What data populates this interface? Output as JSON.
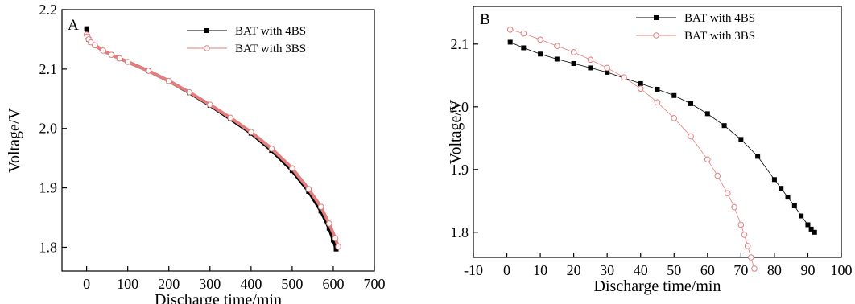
{
  "chart_data": [
    {
      "type": "scatter",
      "panel_label": "A",
      "xlabel": "Discharge time/min",
      "ylabel": "Voltage/V",
      "xlim": [
        -60,
        700
      ],
      "ylim": [
        1.76,
        2.2
      ],
      "xticks": [
        0,
        100,
        200,
        300,
        400,
        500,
        600,
        700
      ],
      "yticks": [
        1.8,
        1.9,
        2.0,
        2.1,
        2.2
      ],
      "legend_position": "top-right",
      "series": [
        {
          "name": "BAT with 4BS",
          "color": "#000000",
          "marker": "square",
          "x": [
            0,
            2,
            5,
            10,
            20,
            40,
            60,
            80,
            100,
            150,
            200,
            250,
            300,
            350,
            400,
            450,
            500,
            540,
            570,
            590,
            600,
            607
          ],
          "y": [
            2.168,
            2.155,
            2.15,
            2.145,
            2.14,
            2.131,
            2.124,
            2.118,
            2.112,
            2.097,
            2.08,
            2.06,
            2.039,
            2.016,
            1.992,
            1.963,
            1.929,
            1.894,
            1.861,
            1.832,
            1.812,
            1.797
          ]
        },
        {
          "name": "BAT with 3BS",
          "color": "#e37e7e",
          "marker": "circle",
          "x": [
            0,
            2,
            5,
            10,
            20,
            40,
            60,
            80,
            100,
            150,
            200,
            250,
            300,
            350,
            400,
            450,
            500,
            540,
            570,
            590,
            605,
            612
          ],
          "y": [
            2.158,
            2.155,
            2.15,
            2.145,
            2.14,
            2.131,
            2.124,
            2.118,
            2.112,
            2.097,
            2.08,
            2.061,
            2.04,
            2.018,
            1.994,
            1.966,
            1.933,
            1.898,
            1.868,
            1.84,
            1.815,
            1.801
          ]
        }
      ]
    },
    {
      "type": "scatter",
      "panel_label": "B",
      "xlabel": "Discharge time/min",
      "ylabel": "Voltage/V",
      "xlim": [
        -10,
        100
      ],
      "ylim": [
        1.76,
        2.16
      ],
      "xticks": [
        -10,
        0,
        10,
        20,
        30,
        40,
        50,
        60,
        70,
        80,
        90,
        100
      ],
      "yticks": [
        1.8,
        1.9,
        2.0,
        2.1
      ],
      "legend_position": "top-right",
      "series": [
        {
          "name": "BAT with 4BS",
          "color": "#000000",
          "marker": "square",
          "x": [
            1,
            5,
            10,
            15,
            20,
            25,
            30,
            35,
            40,
            45,
            50,
            55,
            60,
            65,
            70,
            75,
            80,
            82,
            84,
            86,
            88,
            90,
            91,
            92
          ],
          "y": [
            2.103,
            2.094,
            2.084,
            2.076,
            2.069,
            2.062,
            2.055,
            2.046,
            2.037,
            2.028,
            2.018,
            2.005,
            1.989,
            1.97,
            1.948,
            1.921,
            1.884,
            1.87,
            1.856,
            1.842,
            1.826,
            1.812,
            1.805,
            1.8
          ]
        },
        {
          "name": "BAT with 3BS",
          "color": "#e37e7e",
          "marker": "circle",
          "x": [
            1,
            5,
            10,
            15,
            20,
            25,
            30,
            35,
            40,
            45,
            50,
            55,
            60,
            63,
            66,
            68,
            70,
            71,
            72,
            73,
            74
          ],
          "y": [
            2.123,
            2.117,
            2.107,
            2.097,
            2.087,
            2.075,
            2.062,
            2.047,
            2.029,
            2.007,
            1.982,
            1.953,
            1.916,
            1.89,
            1.862,
            1.84,
            1.812,
            1.796,
            1.778,
            1.76,
            1.742
          ]
        }
      ]
    }
  ]
}
